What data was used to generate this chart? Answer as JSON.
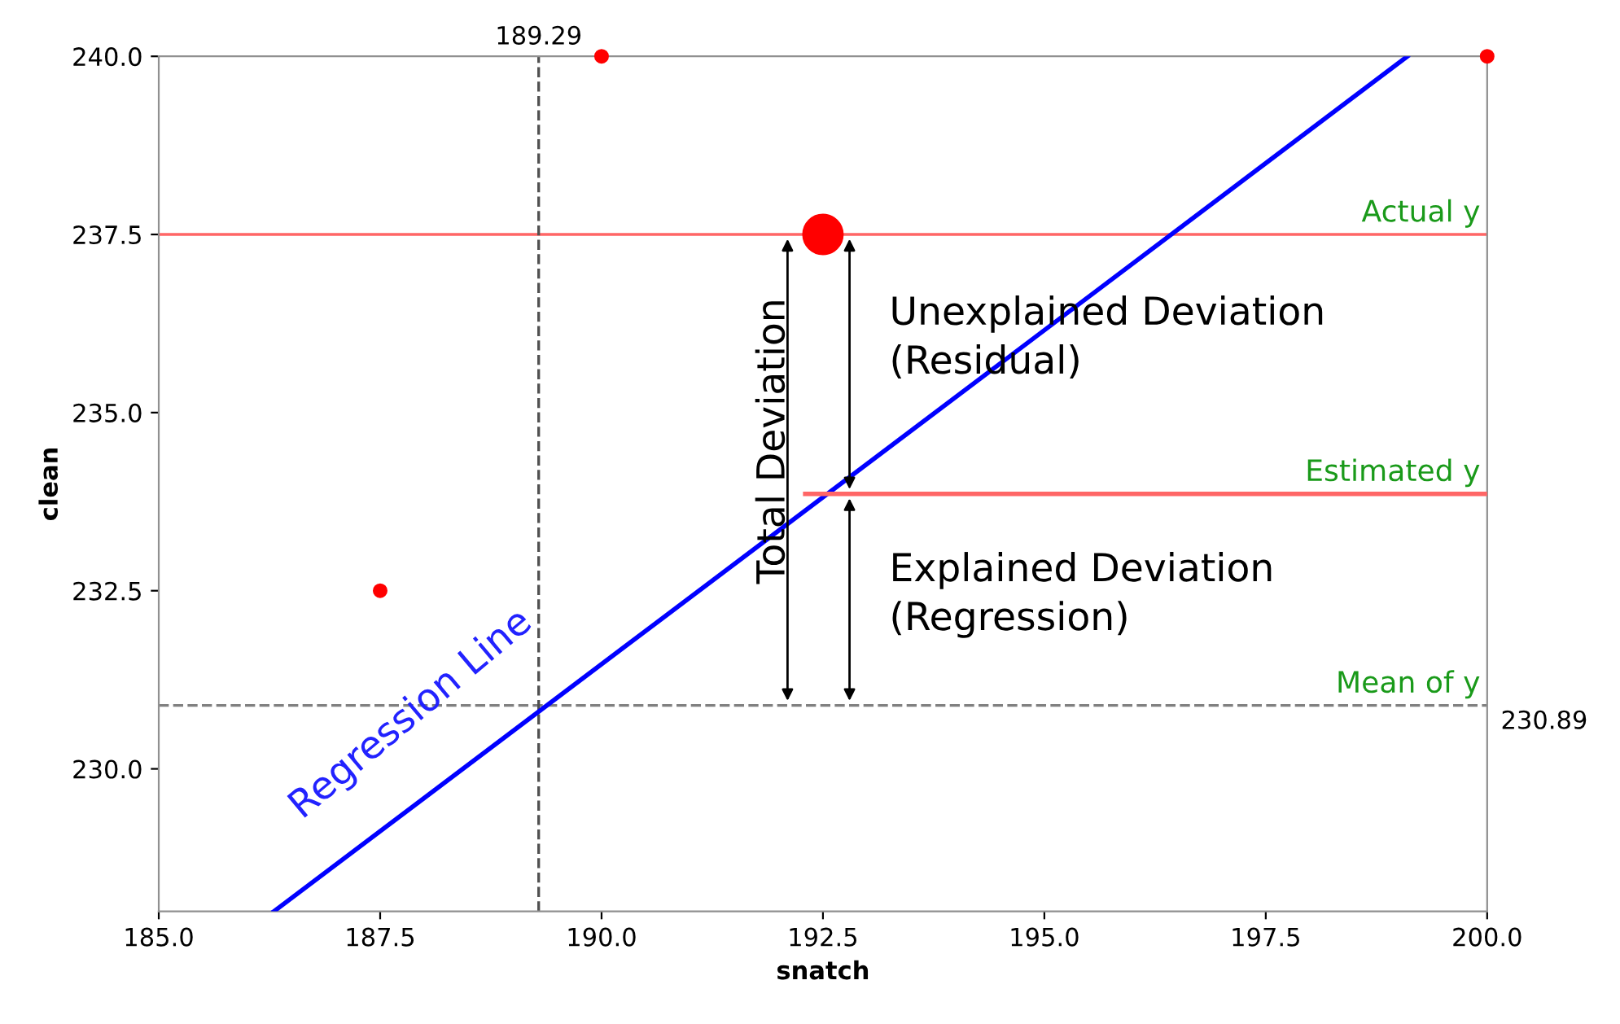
{
  "chart_data": {
    "type": "scatter",
    "xlabel": "snatch",
    "ylabel": "clean",
    "xlim": [
      185.0,
      200.0
    ],
    "ylim": [
      228.0,
      240.0
    ],
    "xticks": [
      {
        "value": 185,
        "label": "185.0"
      },
      187.5,
      {
        "value": 190,
        "label": "190.0"
      },
      192.5,
      {
        "value": 195,
        "label": "195.0"
      },
      197.5,
      {
        "value": 200,
        "label": "200.0"
      }
    ],
    "yticks": [
      {
        "value": 230,
        "label": "230.0"
      },
      232.5,
      {
        "value": 235,
        "label": "235.0"
      },
      237.5,
      {
        "value": 240,
        "label": "240.0"
      }
    ],
    "grid": false,
    "legend": false,
    "series": [
      {
        "color": "#ff0000",
        "marker": "circle",
        "x": [
          187.5,
          190.0,
          200.0
        ],
        "values": [
          232.5,
          240.0,
          240.0
        ]
      },
      {
        "color": "#ff0000",
        "marker": "circle",
        "x": [
          192.5
        ],
        "values": [
          237.5
        ]
      },
      {
        "type": "line",
        "color": "#0000ff",
        "x": [
          186.3,
          199.1
        ],
        "values": [
          228.0,
          240.0
        ],
        "line_style": "solid"
      },
      {
        "type": "line",
        "color": "#ff6666",
        "x": [
          192.3,
          200.0
        ],
        "values": [
          233.86,
          233.86
        ],
        "line_style": "solid"
      }
    ],
    "ref_lines": [
      {
        "axis": "y",
        "value": 237.5,
        "label": null,
        "color": "#ff6666",
        "line_style": "solid"
      },
      {
        "axis": "y",
        "value": 230.89,
        "label": "230.89",
        "color": "#808080",
        "line_style": "dashed"
      },
      {
        "axis": "x",
        "value": 189.29,
        "label": "189.29",
        "color": "#505050",
        "line_style": "dashed"
      }
    ],
    "annotations": [
      "Actual y",
      "Estimated y",
      "Mean of y",
      "Total Deviation",
      "Unexplained Deviation\n(Residual)",
      "Explained Deviation\n(Regression)",
      "Regression Line"
    ]
  }
}
